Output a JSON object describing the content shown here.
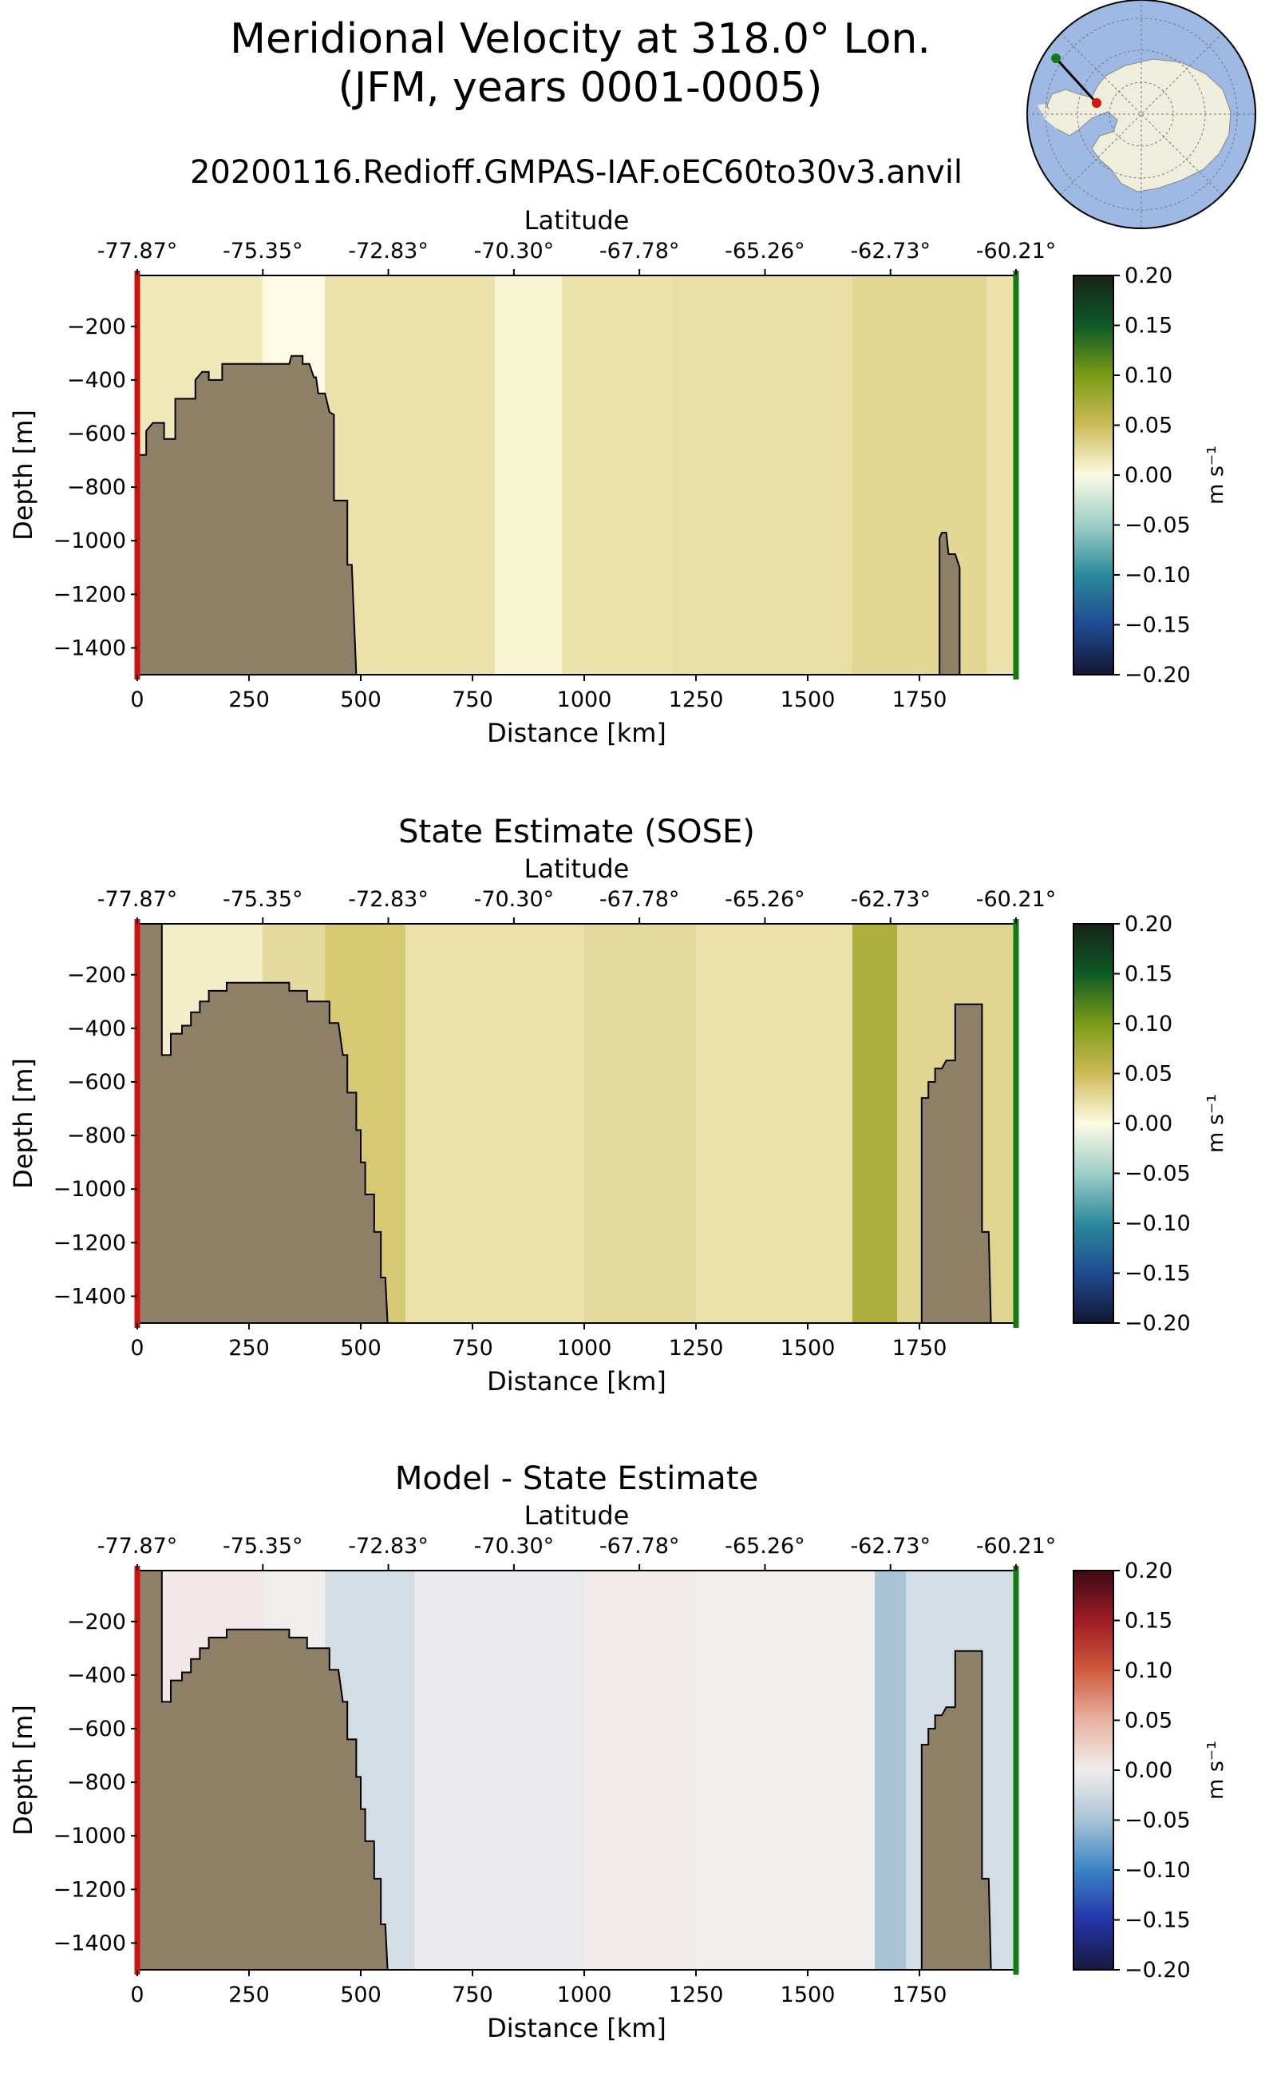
{
  "header": {
    "title_line1": "Meridional Velocity at 318.0° Lon.",
    "title_line2": "(JFM, years 0001-0005)",
    "run_name": "20200116.Redioff.GMPAS-IAF.oEC60to30v3.anvil"
  },
  "colors": {
    "land": "#8e8067",
    "start_marker": "#cc1111",
    "end_marker": "#117a11",
    "inset_ocean": "#9db9e4",
    "inset_land": "#efeedd"
  },
  "chart_data": [
    {
      "type": "heatmap",
      "title": "",
      "xlabel": "Distance [km]",
      "ylabel": "Depth [m]",
      "top_axis_label": "Latitude",
      "latitude_ticks": [
        "-77.87°",
        "-75.35°",
        "-72.83°",
        "-70.30°",
        "-67.78°",
        "-65.26°",
        "-62.73°",
        "-60.21°"
      ],
      "x_ticks": [
        0,
        250,
        500,
        750,
        1000,
        1250,
        1500,
        1750
      ],
      "y_ticks": [
        -200,
        -400,
        -600,
        -800,
        -1000,
        -1200,
        -1400
      ],
      "xlim": [
        0,
        1966
      ],
      "ylim": [
        -1500,
        -10
      ],
      "colorbar": {
        "label": "m s⁻¹",
        "ticks": [
          "0.20",
          "0.15",
          "0.10",
          "0.05",
          "0.00",
          "−0.05",
          "−0.10",
          "−0.15",
          "−0.20"
        ],
        "cmap": "speed",
        "range": [
          -0.2,
          0.2
        ]
      },
      "field": [
        {
          "x_range": [
            0,
            280
          ],
          "value": 0.015
        },
        {
          "x_range": [
            280,
            420
          ],
          "value": 0.0
        },
        {
          "x_range": [
            420,
            800
          ],
          "value": 0.02
        },
        {
          "x_range": [
            800,
            950
          ],
          "value": 0.005
        },
        {
          "x_range": [
            950,
            1200
          ],
          "value": 0.02
        },
        {
          "x_range": [
            1200,
            1600
          ],
          "value": 0.022
        },
        {
          "x_range": [
            1600,
            1900
          ],
          "value": 0.028
        },
        {
          "x_range": [
            1900,
            1966
          ],
          "value": 0.02
        }
      ],
      "bathymetry": [
        {
          "x": 0,
          "depth": -680
        },
        {
          "x": 20,
          "depth": -680
        },
        {
          "x": 20,
          "depth": -590
        },
        {
          "x": 35,
          "depth": -560
        },
        {
          "x": 60,
          "depth": -560
        },
        {
          "x": 60,
          "depth": -620
        },
        {
          "x": 85,
          "depth": -620
        },
        {
          "x": 85,
          "depth": -470
        },
        {
          "x": 130,
          "depth": -470
        },
        {
          "x": 130,
          "depth": -400
        },
        {
          "x": 145,
          "depth": -370
        },
        {
          "x": 160,
          "depth": -370
        },
        {
          "x": 160,
          "depth": -400
        },
        {
          "x": 190,
          "depth": -400
        },
        {
          "x": 190,
          "depth": -340
        },
        {
          "x": 340,
          "depth": -340
        },
        {
          "x": 345,
          "depth": -310
        },
        {
          "x": 370,
          "depth": -310
        },
        {
          "x": 370,
          "depth": -340
        },
        {
          "x": 385,
          "depth": -340
        },
        {
          "x": 395,
          "depth": -390
        },
        {
          "x": 400,
          "depth": -390
        },
        {
          "x": 405,
          "depth": -450
        },
        {
          "x": 420,
          "depth": -450
        },
        {
          "x": 430,
          "depth": -520
        },
        {
          "x": 440,
          "depth": -530
        },
        {
          "x": 440,
          "depth": -850
        },
        {
          "x": 470,
          "depth": -850
        },
        {
          "x": 470,
          "depth": -1090
        },
        {
          "x": 480,
          "depth": -1090
        },
        {
          "x": 490,
          "depth": -1500
        },
        {
          "x": 1795,
          "depth": -1500
        },
        {
          "x": 1795,
          "depth": -990
        },
        {
          "x": 1800,
          "depth": -970
        },
        {
          "x": 1810,
          "depth": -970
        },
        {
          "x": 1815,
          "depth": -1050
        },
        {
          "x": 1830,
          "depth": -1050
        },
        {
          "x": 1840,
          "depth": -1100
        },
        {
          "x": 1840,
          "depth": -1500
        }
      ]
    },
    {
      "type": "heatmap",
      "title": "State Estimate (SOSE)",
      "xlabel": "Distance [km]",
      "ylabel": "Depth [m]",
      "top_axis_label": "Latitude",
      "latitude_ticks": [
        "-77.87°",
        "-75.35°",
        "-72.83°",
        "-70.30°",
        "-67.78°",
        "-65.26°",
        "-62.73°",
        "-60.21°"
      ],
      "x_ticks": [
        0,
        250,
        500,
        750,
        1000,
        1250,
        1500,
        1750
      ],
      "y_ticks": [
        -200,
        -400,
        -600,
        -800,
        -1000,
        -1200,
        -1400
      ],
      "xlim": [
        0,
        1966
      ],
      "ylim": [
        -1500,
        -10
      ],
      "colorbar": {
        "label": "m s⁻¹",
        "ticks": [
          "0.20",
          "0.15",
          "0.10",
          "0.05",
          "0.00",
          "−0.05",
          "−0.10",
          "−0.15",
          "−0.20"
        ],
        "cmap": "speed",
        "range": [
          -0.2,
          0.2
        ]
      },
      "field": [
        {
          "x_range": [
            0,
            280
          ],
          "value": 0.01
        },
        {
          "x_range": [
            280,
            420
          ],
          "value": 0.025
        },
        {
          "x_range": [
            420,
            600
          ],
          "value": 0.04
        },
        {
          "x_range": [
            600,
            1000
          ],
          "value": 0.02
        },
        {
          "x_range": [
            1000,
            1250
          ],
          "value": 0.025
        },
        {
          "x_range": [
            1250,
            1600
          ],
          "value": 0.02
        },
        {
          "x_range": [
            1600,
            1700
          ],
          "value": 0.07
        },
        {
          "x_range": [
            1700,
            1966
          ],
          "value": 0.03
        }
      ],
      "bathymetry": [
        {
          "x": 0,
          "depth": -10
        },
        {
          "x": 55,
          "depth": -10
        },
        {
          "x": 55,
          "depth": -500
        },
        {
          "x": 75,
          "depth": -500
        },
        {
          "x": 75,
          "depth": -420
        },
        {
          "x": 100,
          "depth": -420
        },
        {
          "x": 100,
          "depth": -390
        },
        {
          "x": 120,
          "depth": -390
        },
        {
          "x": 120,
          "depth": -340
        },
        {
          "x": 140,
          "depth": -340
        },
        {
          "x": 140,
          "depth": -300
        },
        {
          "x": 160,
          "depth": -300
        },
        {
          "x": 160,
          "depth": -260
        },
        {
          "x": 200,
          "depth": -260
        },
        {
          "x": 200,
          "depth": -230
        },
        {
          "x": 340,
          "depth": -230
        },
        {
          "x": 340,
          "depth": -260
        },
        {
          "x": 380,
          "depth": -260
        },
        {
          "x": 380,
          "depth": -300
        },
        {
          "x": 430,
          "depth": -300
        },
        {
          "x": 430,
          "depth": -380
        },
        {
          "x": 450,
          "depth": -380
        },
        {
          "x": 460,
          "depth": -500
        },
        {
          "x": 470,
          "depth": -500
        },
        {
          "x": 470,
          "depth": -640
        },
        {
          "x": 490,
          "depth": -640
        },
        {
          "x": 490,
          "depth": -780
        },
        {
          "x": 500,
          "depth": -780
        },
        {
          "x": 500,
          "depth": -900
        },
        {
          "x": 510,
          "depth": -900
        },
        {
          "x": 510,
          "depth": -1020
        },
        {
          "x": 530,
          "depth": -1020
        },
        {
          "x": 530,
          "depth": -1160
        },
        {
          "x": 545,
          "depth": -1160
        },
        {
          "x": 545,
          "depth": -1330
        },
        {
          "x": 555,
          "depth": -1330
        },
        {
          "x": 560,
          "depth": -1500
        },
        {
          "x": 1755,
          "depth": -1500
        },
        {
          "x": 1755,
          "depth": -660
        },
        {
          "x": 1770,
          "depth": -660
        },
        {
          "x": 1770,
          "depth": -600
        },
        {
          "x": 1785,
          "depth": -600
        },
        {
          "x": 1785,
          "depth": -550
        },
        {
          "x": 1800,
          "depth": -550
        },
        {
          "x": 1810,
          "depth": -520
        },
        {
          "x": 1830,
          "depth": -520
        },
        {
          "x": 1830,
          "depth": -310
        },
        {
          "x": 1890,
          "depth": -310
        },
        {
          "x": 1890,
          "depth": -1160
        },
        {
          "x": 1905,
          "depth": -1160
        },
        {
          "x": 1910,
          "depth": -1500
        }
      ]
    },
    {
      "type": "heatmap",
      "title": "Model - State Estimate",
      "xlabel": "Distance [km]",
      "ylabel": "Depth [m]",
      "top_axis_label": "Latitude",
      "latitude_ticks": [
        "-77.87°",
        "-75.35°",
        "-72.83°",
        "-70.30°",
        "-67.78°",
        "-65.26°",
        "-62.73°",
        "-60.21°"
      ],
      "x_ticks": [
        0,
        250,
        500,
        750,
        1000,
        1250,
        1500,
        1750
      ],
      "y_ticks": [
        -200,
        -400,
        -600,
        -800,
        -1000,
        -1200,
        -1400
      ],
      "xlim": [
        0,
        1966
      ],
      "ylim": [
        -1500,
        -10
      ],
      "colorbar": {
        "label": "m s⁻¹",
        "ticks": [
          "0.20",
          "0.15",
          "0.10",
          "0.05",
          "0.00",
          "−0.05",
          "−0.10",
          "−0.15",
          "−0.20"
        ],
        "cmap": "balance",
        "range": [
          -0.2,
          0.2
        ]
      },
      "field": [
        {
          "x_range": [
            0,
            280
          ],
          "value": 0.005
        },
        {
          "x_range": [
            280,
            420
          ],
          "value": 0.0
        },
        {
          "x_range": [
            420,
            620
          ],
          "value": -0.02
        },
        {
          "x_range": [
            620,
            1000
          ],
          "value": -0.005
        },
        {
          "x_range": [
            1000,
            1250
          ],
          "value": 0.003
        },
        {
          "x_range": [
            1250,
            1650
          ],
          "value": 0.0
        },
        {
          "x_range": [
            1650,
            1720
          ],
          "value": -0.05
        },
        {
          "x_range": [
            1720,
            1966
          ],
          "value": -0.02
        }
      ],
      "bathymetry": [
        {
          "x": 0,
          "depth": -10
        },
        {
          "x": 55,
          "depth": -10
        },
        {
          "x": 55,
          "depth": -500
        },
        {
          "x": 75,
          "depth": -500
        },
        {
          "x": 75,
          "depth": -420
        },
        {
          "x": 100,
          "depth": -420
        },
        {
          "x": 100,
          "depth": -390
        },
        {
          "x": 120,
          "depth": -390
        },
        {
          "x": 120,
          "depth": -340
        },
        {
          "x": 140,
          "depth": -340
        },
        {
          "x": 140,
          "depth": -300
        },
        {
          "x": 160,
          "depth": -300
        },
        {
          "x": 160,
          "depth": -260
        },
        {
          "x": 200,
          "depth": -260
        },
        {
          "x": 200,
          "depth": -230
        },
        {
          "x": 340,
          "depth": -230
        },
        {
          "x": 340,
          "depth": -260
        },
        {
          "x": 380,
          "depth": -260
        },
        {
          "x": 380,
          "depth": -300
        },
        {
          "x": 430,
          "depth": -300
        },
        {
          "x": 430,
          "depth": -380
        },
        {
          "x": 450,
          "depth": -380
        },
        {
          "x": 460,
          "depth": -500
        },
        {
          "x": 470,
          "depth": -500
        },
        {
          "x": 470,
          "depth": -640
        },
        {
          "x": 490,
          "depth": -640
        },
        {
          "x": 490,
          "depth": -780
        },
        {
          "x": 500,
          "depth": -780
        },
        {
          "x": 500,
          "depth": -900
        },
        {
          "x": 510,
          "depth": -900
        },
        {
          "x": 510,
          "depth": -1020
        },
        {
          "x": 530,
          "depth": -1020
        },
        {
          "x": 530,
          "depth": -1160
        },
        {
          "x": 545,
          "depth": -1160
        },
        {
          "x": 545,
          "depth": -1330
        },
        {
          "x": 555,
          "depth": -1330
        },
        {
          "x": 560,
          "depth": -1500
        },
        {
          "x": 1755,
          "depth": -1500
        },
        {
          "x": 1755,
          "depth": -660
        },
        {
          "x": 1770,
          "depth": -660
        },
        {
          "x": 1770,
          "depth": -600
        },
        {
          "x": 1785,
          "depth": -600
        },
        {
          "x": 1785,
          "depth": -550
        },
        {
          "x": 1800,
          "depth": -550
        },
        {
          "x": 1810,
          "depth": -520
        },
        {
          "x": 1830,
          "depth": -520
        },
        {
          "x": 1830,
          "depth": -310
        },
        {
          "x": 1890,
          "depth": -310
        },
        {
          "x": 1890,
          "depth": -1160
        },
        {
          "x": 1905,
          "depth": -1160
        },
        {
          "x": 1910,
          "depth": -1500
        }
      ]
    }
  ]
}
